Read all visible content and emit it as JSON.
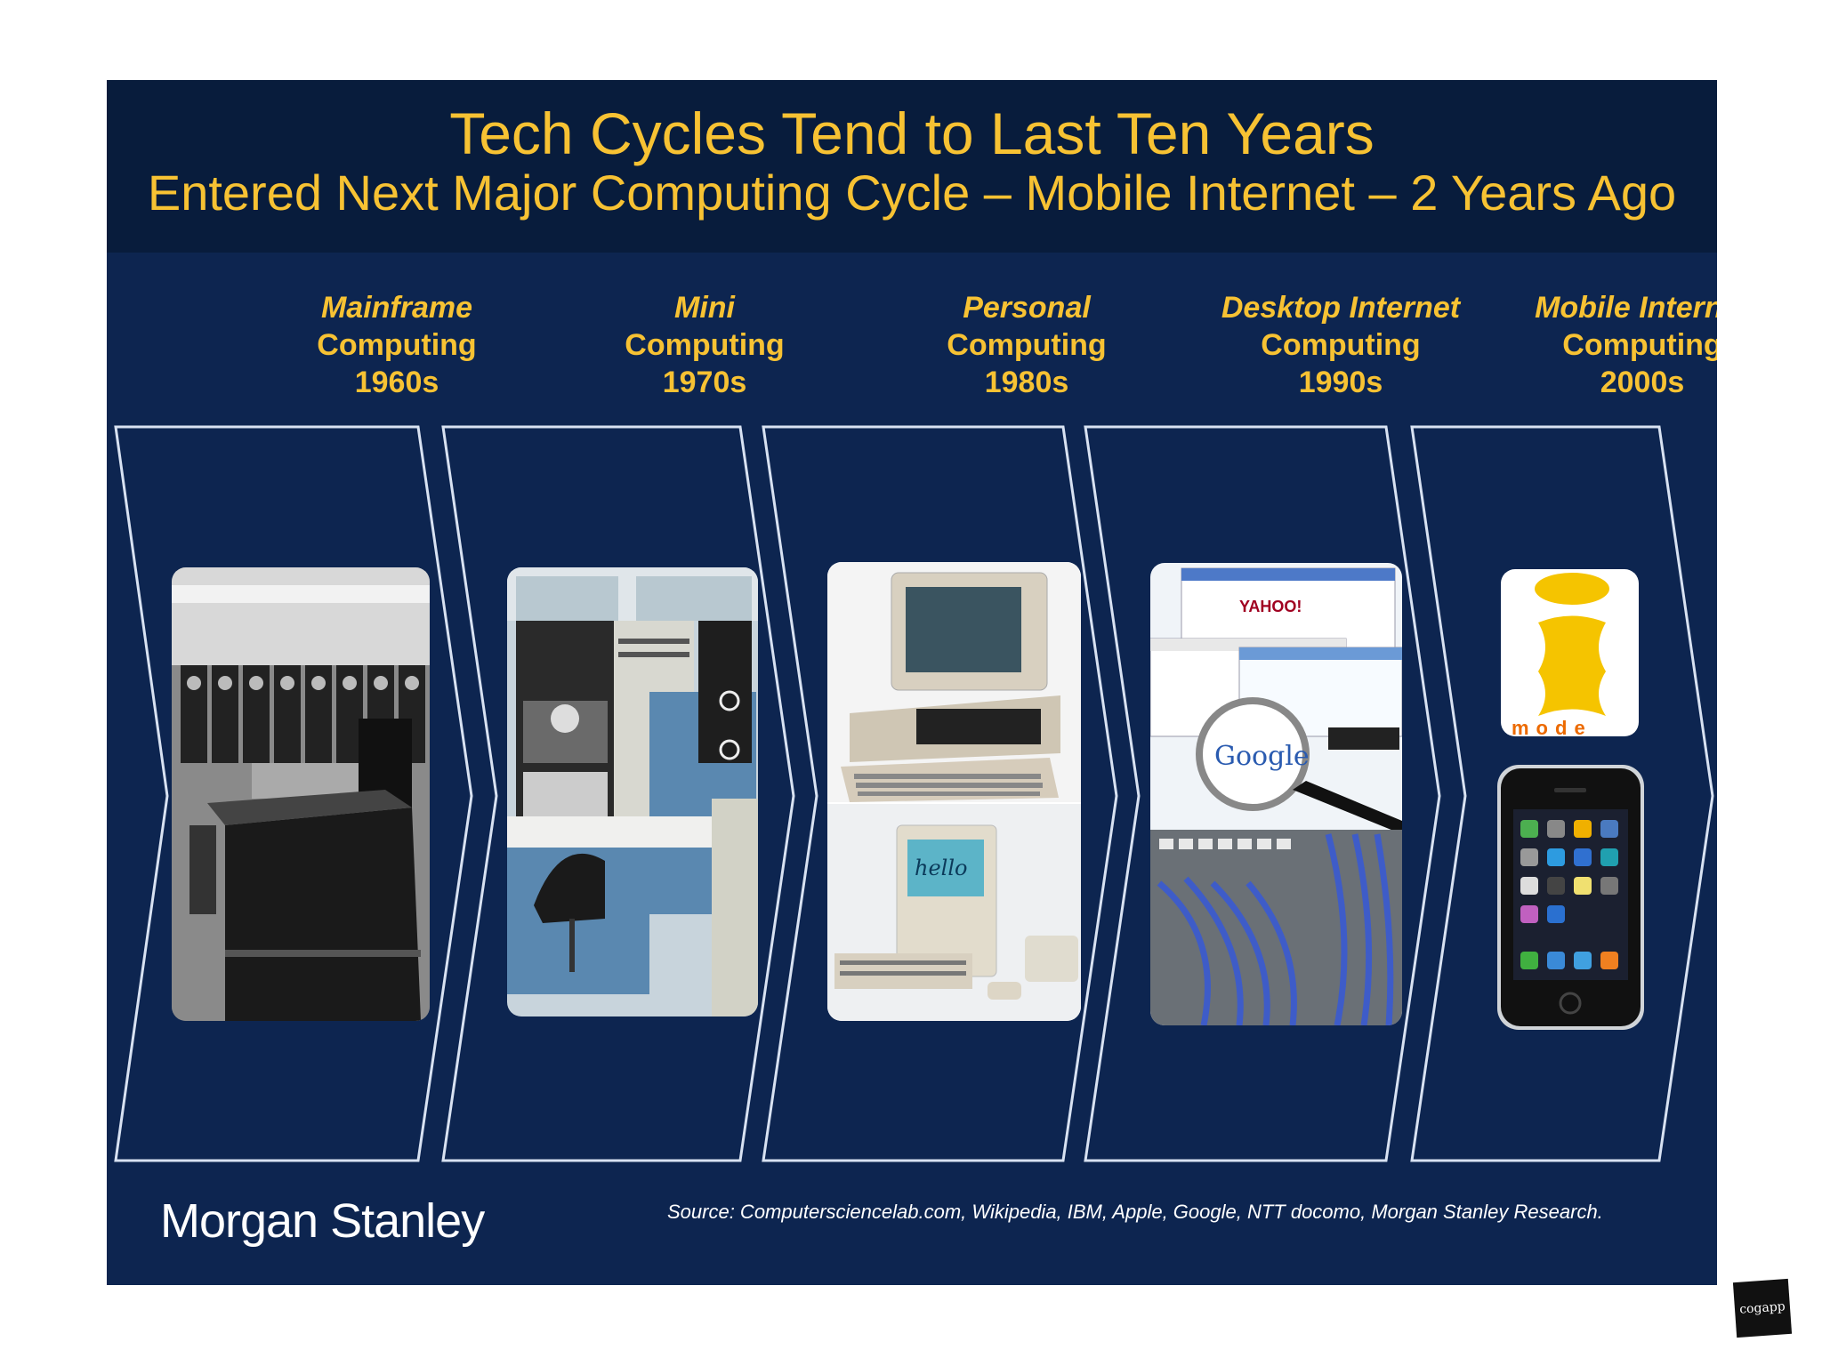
{
  "slide": {
    "title": "Tech Cycles Tend to Last Ten Years",
    "subtitle": "Entered Next Major Computing Cycle – Mobile Internet – 2 Years Ago"
  },
  "eras": [
    {
      "name": "Mainframe",
      "type": "Computing",
      "decade": "1960s",
      "icon": "mainframe-photo"
    },
    {
      "name": "Mini",
      "type": "Computing",
      "decade": "1970s",
      "icon": "minicomputer-photo"
    },
    {
      "name": "Personal",
      "type": "Computing",
      "decade": "1980s",
      "icon": "personal-computer-photo"
    },
    {
      "name": "Desktop Internet",
      "type": "Computing",
      "decade": "1990s",
      "icon": "desktop-internet-photo"
    },
    {
      "name": "Mobile Internet",
      "type": "Computing",
      "decade": "2000s",
      "icon": "mobile-phone-photo"
    }
  ],
  "images": {
    "yahoo_logo": "YAHOO!",
    "google_logo": "Google",
    "mac_screen": "hello",
    "imode_logo": "mode"
  },
  "footer": {
    "brand": "Morgan Stanley",
    "source": "Source: Computersciencelab.com, Wikipedia, IBM, Apple, Google, NTT docomo, Morgan Stanley Research."
  },
  "corner_logo": "cogapp",
  "colors": {
    "title": "#f7c233",
    "background": "#0d2550",
    "title_band": "#081c3c",
    "outline": "#d8e2f2"
  }
}
